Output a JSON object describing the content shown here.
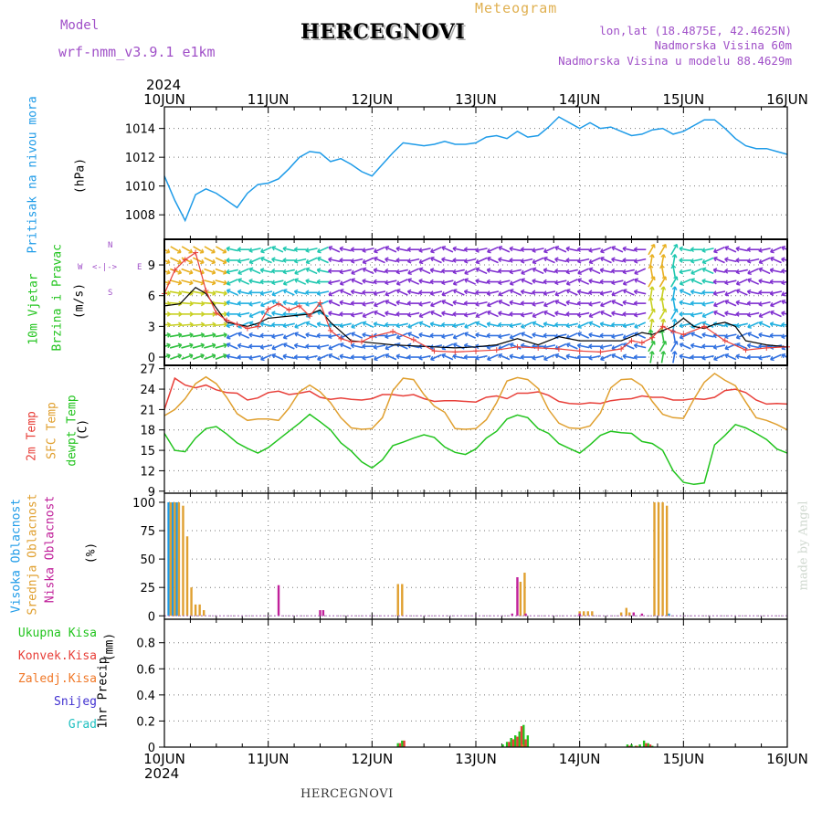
{
  "header": {
    "model_label": "Model",
    "model_name": "wrf-nmm_v3.9.1  e1km",
    "title": "HERCEGNOVI",
    "subtitle": "Meteogram",
    "location_line": "lon,lat (18.4875E, 42.4625N)",
    "elevation_line": "Nadmorska Visina 60m",
    "model_elevation_line": "Nadmorska Visina u modelu 88.4629m",
    "year": "2024",
    "footer_station": "HERCEGNOVI",
    "watermark": "made by Angel"
  },
  "colors": {
    "pressure": "#1e9be8",
    "temp2m": "#e8403a",
    "sfc_temp": "#e0a030",
    "dewpt": "#22c41e",
    "high_cloud": "#1e9be8",
    "mid_cloud": "#e0a030",
    "low_cloud": "#c0209a",
    "total_precip": "#22c41e",
    "conv_precip": "#e8403a",
    "frz_precip": "#f07828",
    "snow": "#4030d0",
    "hail": "#20c0c0",
    "model_purple": "#a050c8",
    "meteogram_gold": "#e0b050"
  },
  "chart_data": [
    {
      "type": "line",
      "id": "pressure",
      "ylabel_parts": [
        "Pritisak na nivou mora",
        "(hPa)"
      ],
      "x_tick_labels": [
        "10JUN",
        "11JUN",
        "12JUN",
        "13JUN",
        "14JUN",
        "15JUN",
        "16JUN"
      ],
      "x_unit": "days since 10JUN 00UTC",
      "xlim": [
        0,
        6
      ],
      "ylim": [
        1006.3,
        1015.5
      ],
      "y_ticks": [
        1008,
        1010,
        1012,
        1014
      ],
      "series": [
        {
          "color_key": "pressure",
          "x": [
            0,
            0.1,
            0.2,
            0.3,
            0.4,
            0.5,
            0.6,
            0.7,
            0.8,
            0.9,
            1.0,
            1.1,
            1.2,
            1.3,
            1.4,
            1.5,
            1.6,
            1.7,
            1.8,
            1.9,
            2.0,
            2.1,
            2.2,
            2.3,
            2.4,
            2.5,
            2.6,
            2.7,
            2.8,
            2.9,
            3.0,
            3.1,
            3.2,
            3.3,
            3.4,
            3.5,
            3.6,
            3.7,
            3.8,
            3.9,
            4.0,
            4.1,
            4.2,
            4.3,
            4.4,
            4.5,
            4.6,
            4.7,
            4.8,
            4.9,
            5.0,
            5.1,
            5.2,
            5.3,
            5.4,
            5.5,
            5.6,
            5.7,
            5.8,
            5.9,
            6.0
          ],
          "values": [
            1010.7,
            1009.0,
            1007.6,
            1009.4,
            1009.8,
            1009.5,
            1009.0,
            1008.5,
            1009.5,
            1010.1,
            1010.2,
            1010.5,
            1011.2,
            1012.0,
            1012.4,
            1012.3,
            1011.7,
            1011.9,
            1011.5,
            1011.0,
            1010.7,
            1011.5,
            1012.3,
            1013.0,
            1012.9,
            1012.8,
            1012.9,
            1013.1,
            1012.9,
            1012.9,
            1013.0,
            1013.4,
            1013.5,
            1013.3,
            1013.8,
            1013.4,
            1013.5,
            1014.1,
            1014.8,
            1014.4,
            1014.0,
            1014.4,
            1014.0,
            1014.1,
            1013.8,
            1013.5,
            1013.6,
            1013.9,
            1014.0,
            1013.6,
            1013.8,
            1014.2,
            1014.6,
            1014.6,
            1014.0,
            1013.3,
            1012.8,
            1012.6,
            1012.6,
            1012.4,
            1012.2
          ]
        }
      ]
    },
    {
      "type": "line",
      "id": "wind",
      "ylabel_parts": [
        "10m Vjetar",
        "Brzina i Pravac",
        "(m/s)"
      ],
      "compass": {
        "n": "N",
        "e": "E",
        "s": "S",
        "w": "W"
      },
      "xlim": [
        0,
        6
      ],
      "ylim": [
        -0.8,
        11.5
      ],
      "y_ticks": [
        0,
        3,
        6,
        9
      ],
      "arrow_colors": [
        "#e8b020",
        "#c8d020",
        "#30c040",
        "#20c8b0",
        "#20b0e0",
        "#3070e0",
        "#8030d0"
      ],
      "series": [
        {
          "name": "",
          "color": "#000000",
          "x": [
            0,
            0.15,
            0.3,
            0.4,
            0.5,
            0.6,
            0.7,
            0.8,
            0.9,
            1.0,
            1.2,
            1.4,
            1.5,
            1.6,
            1.8,
            2.0,
            2.2,
            2.4,
            2.6,
            2.8,
            3.0,
            3.2,
            3.4,
            3.6,
            3.8,
            4.0,
            4.2,
            4.4,
            4.6,
            4.7,
            4.8,
            4.9,
            5.0,
            5.1,
            5.2,
            5.3,
            5.4,
            5.5,
            5.6,
            5.8,
            6.0
          ],
          "values": [
            5.0,
            5.2,
            6.8,
            6.2,
            4.8,
            3.4,
            3.2,
            3.0,
            3.3,
            3.8,
            4.0,
            4.2,
            4.6,
            3.4,
            1.6,
            1.4,
            1.2,
            1.1,
            1.0,
            0.9,
            1.0,
            1.2,
            1.8,
            1.2,
            2.0,
            1.6,
            1.6,
            1.6,
            2.4,
            2.2,
            2.6,
            3.0,
            3.8,
            3.0,
            2.8,
            3.2,
            3.4,
            3.0,
            1.6,
            1.2,
            1.0
          ]
        },
        {
          "name": "",
          "color": "#e8403a",
          "x": [
            0,
            0.1,
            0.2,
            0.3,
            0.4,
            0.5,
            0.6,
            0.7,
            0.8,
            0.9,
            1.0,
            1.1,
            1.2,
            1.3,
            1.4,
            1.5,
            1.6,
            1.7,
            1.8,
            1.9,
            2.0,
            2.2,
            2.4,
            2.6,
            2.8,
            3.0,
            3.2,
            3.4,
            3.6,
            3.8,
            4.0,
            4.2,
            4.4,
            4.5,
            4.6,
            4.7,
            4.8,
            4.9,
            5.0,
            5.2,
            5.4,
            5.6,
            5.8,
            6.0
          ],
          "values": [
            6.2,
            8.5,
            9.5,
            10.2,
            6.5,
            4.3,
            3.6,
            3.2,
            2.8,
            3.0,
            4.7,
            5.2,
            4.6,
            5.0,
            4.0,
            5.3,
            2.6,
            1.8,
            1.5,
            1.5,
            2.0,
            2.5,
            1.7,
            0.6,
            0.5,
            0.6,
            0.7,
            1.0,
            0.9,
            0.8,
            0.6,
            0.5,
            0.8,
            1.6,
            1.4,
            1.9,
            3.0,
            2.5,
            2.2,
            3.0,
            1.6,
            0.7,
            0.9,
            1.0
          ]
        }
      ]
    },
    {
      "type": "line",
      "id": "temperature",
      "ylabel_parts": [
        "2m Temp",
        "SFC Temp",
        "dewpt Temp",
        "(C)"
      ],
      "xlim": [
        0,
        6
      ],
      "ylim": [
        8.7,
        27.5
      ],
      "y_ticks": [
        9,
        12,
        15,
        18,
        21,
        24,
        27
      ],
      "series": [
        {
          "name": "2m Temp",
          "color_key": "temp2m",
          "x": [
            0,
            0.1,
            0.2,
            0.3,
            0.4,
            0.5,
            0.6,
            0.7,
            0.8,
            0.9,
            1.0,
            1.1,
            1.2,
            1.3,
            1.4,
            1.5,
            1.6,
            1.7,
            1.8,
            1.9,
            2.0,
            2.1,
            2.2,
            2.3,
            2.4,
            2.5,
            2.6,
            2.7,
            2.8,
            2.9,
            3.0,
            3.1,
            3.2,
            3.3,
            3.4,
            3.5,
            3.6,
            3.7,
            3.8,
            3.9,
            4.0,
            4.1,
            4.2,
            4.3,
            4.4,
            4.5,
            4.6,
            4.7,
            4.8,
            4.9,
            5.0,
            5.1,
            5.2,
            5.3,
            5.4,
            5.5,
            5.6,
            5.7,
            5.8,
            5.9,
            6.0
          ],
          "values": [
            21.0,
            25.6,
            24.6,
            24.2,
            24.6,
            23.9,
            23.5,
            23.4,
            22.4,
            22.7,
            23.5,
            23.7,
            23.2,
            23.4,
            23.7,
            22.8,
            22.5,
            22.7,
            22.5,
            22.4,
            22.6,
            23.2,
            23.2,
            23.0,
            23.2,
            22.6,
            22.2,
            22.3,
            22.3,
            22.2,
            22.1,
            22.8,
            23.0,
            22.6,
            23.4,
            23.4,
            23.6,
            23.1,
            22.2,
            21.9,
            21.8,
            22.0,
            21.9,
            22.3,
            22.5,
            22.6,
            23.0,
            22.8,
            22.8,
            22.4,
            22.4,
            22.6,
            22.5,
            22.8,
            23.8,
            24.0,
            23.5,
            22.4,
            21.8,
            21.9,
            21.8
          ]
        },
        {
          "name": "SFC Temp",
          "color_key": "sfc_temp",
          "x": [
            0,
            0.1,
            0.2,
            0.3,
            0.4,
            0.5,
            0.6,
            0.7,
            0.8,
            0.9,
            1.0,
            1.1,
            1.2,
            1.3,
            1.4,
            1.5,
            1.6,
            1.7,
            1.8,
            1.9,
            2.0,
            2.1,
            2.2,
            2.3,
            2.4,
            2.5,
            2.6,
            2.7,
            2.8,
            2.9,
            3.0,
            3.1,
            3.2,
            3.3,
            3.4,
            3.5,
            3.6,
            3.7,
            3.8,
            3.9,
            4.0,
            4.1,
            4.2,
            4.3,
            4.4,
            4.5,
            4.6,
            4.7,
            4.8,
            4.9,
            5.0,
            5.1,
            5.2,
            5.3,
            5.4,
            5.5,
            5.6,
            5.7,
            5.8,
            5.9,
            6.0
          ],
          "values": [
            20.1,
            21.0,
            22.6,
            24.8,
            25.8,
            24.8,
            22.8,
            20.4,
            19.4,
            19.6,
            19.6,
            19.4,
            21.2,
            23.6,
            24.6,
            23.6,
            22.0,
            19.8,
            18.3,
            18.1,
            18.2,
            19.8,
            23.8,
            25.6,
            25.4,
            23.2,
            21.5,
            20.6,
            18.2,
            18.1,
            18.2,
            19.5,
            22.0,
            25.2,
            25.7,
            25.4,
            24.1,
            21.0,
            19.0,
            18.3,
            18.2,
            18.6,
            20.5,
            24.2,
            25.4,
            25.5,
            24.5,
            22.2,
            20.3,
            19.8,
            19.7,
            22.5,
            25.0,
            26.3,
            25.3,
            24.5,
            22.1,
            19.8,
            19.4,
            18.8,
            18.0
          ]
        },
        {
          "name": "dewpt Temp",
          "color_key": "dewpt",
          "x": [
            0,
            0.1,
            0.2,
            0.3,
            0.4,
            0.5,
            0.6,
            0.7,
            0.8,
            0.9,
            1.0,
            1.1,
            1.2,
            1.3,
            1.4,
            1.5,
            1.6,
            1.7,
            1.8,
            1.9,
            2.0,
            2.1,
            2.2,
            2.3,
            2.4,
            2.5,
            2.6,
            2.7,
            2.8,
            2.9,
            3.0,
            3.1,
            3.2,
            3.3,
            3.4,
            3.5,
            3.6,
            3.7,
            3.8,
            3.9,
            4.0,
            4.1,
            4.2,
            4.3,
            4.4,
            4.5,
            4.6,
            4.7,
            4.8,
            4.9,
            5.0,
            5.1,
            5.2,
            5.3,
            5.4,
            5.5,
            5.6,
            5.7,
            5.8,
            5.9,
            6.0
          ],
          "values": [
            17.5,
            15.0,
            14.8,
            16.8,
            18.2,
            18.5,
            17.4,
            16.1,
            15.3,
            14.6,
            15.4,
            16.6,
            17.8,
            19.0,
            20.3,
            19.2,
            18.0,
            16.1,
            14.9,
            13.3,
            12.4,
            13.6,
            15.7,
            16.2,
            16.8,
            17.3,
            16.9,
            15.5,
            14.7,
            14.4,
            15.2,
            16.8,
            17.8,
            19.6,
            20.2,
            19.8,
            18.2,
            17.5,
            16.0,
            15.3,
            14.6,
            15.8,
            17.2,
            17.8,
            17.6,
            17.5,
            16.3,
            16.0,
            15.0,
            12.0,
            10.3,
            10.0,
            10.2,
            15.8,
            17.2,
            18.8,
            18.3,
            17.5,
            16.6,
            15.2,
            14.6
          ]
        }
      ]
    },
    {
      "type": "bar",
      "id": "cloud",
      "ylabel_parts": [
        "Visoka Oblacnost",
        "Srednja Oblacnost",
        "Niska Oblacnost",
        "(%)"
      ],
      "xlim": [
        0,
        6
      ],
      "ylim": [
        -3,
        108
      ],
      "y_ticks": [
        0,
        25,
        50,
        75,
        100
      ],
      "series": [
        {
          "name": "Visoka Oblacnost",
          "color_key": "high_cloud",
          "x": [
            0.04,
            0.08,
            0.12,
            4.52,
            4.86
          ],
          "values": [
            100,
            100,
            100,
            1,
            2
          ]
        },
        {
          "name": "Srednja Oblacnost",
          "color_key": "mid_cloud",
          "x": [
            0.06,
            0.1,
            0.14,
            0.18,
            0.22,
            0.26,
            0.3,
            0.34,
            0.38,
            2.25,
            2.29,
            3.43,
            3.47,
            4.0,
            4.04,
            4.08,
            4.12,
            4.4,
            4.45,
            4.48,
            4.72,
            4.76,
            4.8,
            4.84
          ],
          "values": [
            100,
            100,
            100,
            97,
            70,
            25,
            10,
            10,
            5,
            28,
            28,
            30,
            38,
            4,
            4,
            4,
            4,
            3,
            7,
            3,
            100,
            100,
            100,
            97
          ]
        },
        {
          "name": "Niska Oblacnost",
          "color_key": "low_cloud",
          "x": [
            1.1,
            1.5,
            1.53,
            3.35,
            3.4,
            3.48,
            4.0,
            4.52,
            4.6
          ],
          "values": [
            27,
            5,
            5,
            2,
            34,
            2,
            2,
            3,
            2
          ]
        }
      ]
    },
    {
      "type": "bar",
      "id": "precip",
      "ylabel_parts": [
        "1hr Precip",
        "(mm)"
      ],
      "legend": [
        "Ukupna Kisa",
        "Konvek.Kisa",
        "Zaledj.Kisa",
        "Snijeg",
        "Grad"
      ],
      "xlim": [
        0,
        6
      ],
      "ylim": [
        0,
        0.98
      ],
      "y_ticks": [
        0,
        0.2,
        0.4,
        0.6,
        0.8
      ],
      "y_tick_labels": [
        "0",
        "0.2",
        "0.4",
        "0.6",
        "0.8"
      ],
      "series": [
        {
          "name": "Ukupna Kisa",
          "color_key": "total_precip",
          "x": [
            2.25,
            2.29,
            3.26,
            3.3,
            3.34,
            3.38,
            3.42,
            3.46,
            3.5,
            4.46,
            4.5,
            4.54,
            4.58,
            4.62,
            4.66,
            4.7
          ],
          "values": [
            0.03,
            0.05,
            0.02,
            0.04,
            0.07,
            0.09,
            0.12,
            0.17,
            0.09,
            0.02,
            0.02,
            0.01,
            0.02,
            0.05,
            0.03,
            0.01
          ]
        },
        {
          "name": "Konvek.Kisa",
          "color_key": "conv_precip",
          "x": [
            2.27,
            2.31,
            3.32,
            3.36,
            3.4,
            3.44,
            3.48,
            4.48,
            4.64,
            4.68
          ],
          "values": [
            0.03,
            0.05,
            0.04,
            0.06,
            0.08,
            0.16,
            0.06,
            0.01,
            0.03,
            0.02
          ]
        },
        {
          "name": "Zaledj.Kisa",
          "color_key": "frz_precip",
          "x": [
            3.45,
            4.55
          ],
          "values": [
            0.02,
            0.01
          ]
        }
      ]
    }
  ]
}
